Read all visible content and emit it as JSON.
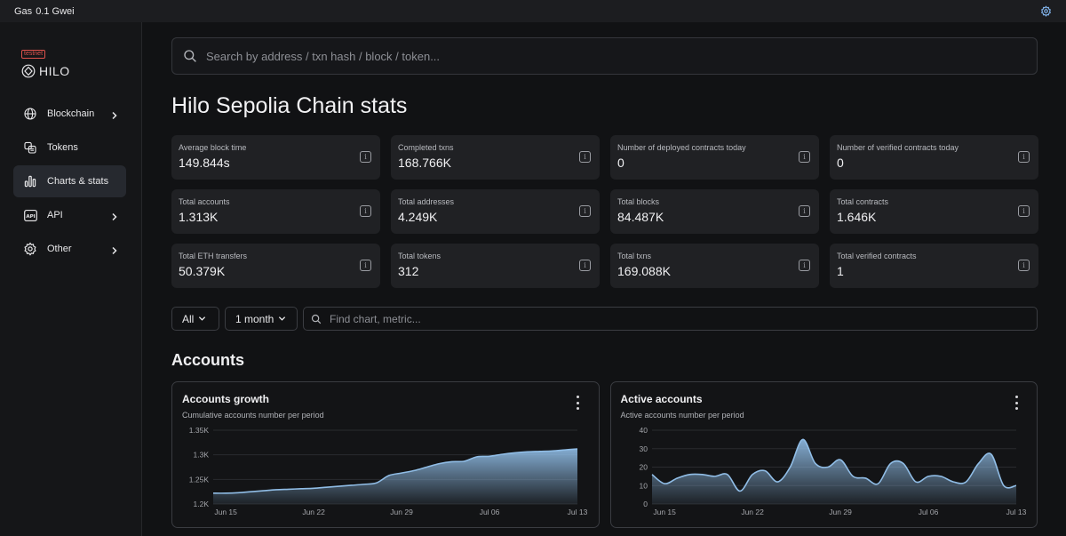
{
  "topbar": {
    "gas_label": "Gas",
    "gas_value": "0.1 Gwei",
    "settings_icon": "gear-icon"
  },
  "brand": {
    "badge": "testnet",
    "name": "HILO"
  },
  "sidebar": {
    "items": [
      {
        "label": "Blockchain",
        "icon": "globe-icon",
        "chevron": true,
        "active": false
      },
      {
        "label": "Tokens",
        "icon": "coins-icon",
        "chevron": false,
        "active": false
      },
      {
        "label": "Charts & stats",
        "icon": "bar-chart-icon",
        "chevron": false,
        "active": true
      },
      {
        "label": "API",
        "icon": "api-icon",
        "chevron": true,
        "active": false
      },
      {
        "label": "Other",
        "icon": "gear-icon",
        "chevron": true,
        "active": false
      }
    ]
  },
  "search": {
    "placeholder": "Search by address / txn hash / block / token..."
  },
  "page": {
    "title": "Hilo Sepolia Chain stats"
  },
  "stats": [
    {
      "label": "Average block time",
      "value": "149.844s"
    },
    {
      "label": "Completed txns",
      "value": "168.766K"
    },
    {
      "label": "Number of deployed contracts today",
      "value": "0"
    },
    {
      "label": "Number of verified contracts today",
      "value": "0"
    },
    {
      "label": "Total accounts",
      "value": "1.313K"
    },
    {
      "label": "Total addresses",
      "value": "4.249K"
    },
    {
      "label": "Total blocks",
      "value": "84.487K"
    },
    {
      "label": "Total contracts",
      "value": "1.646K"
    },
    {
      "label": "Total ETH transfers",
      "value": "50.379K"
    },
    {
      "label": "Total tokens",
      "value": "312"
    },
    {
      "label": "Total txns",
      "value": "169.088K"
    },
    {
      "label": "Total verified contracts",
      "value": "1"
    }
  ],
  "filters": {
    "section": "All",
    "interval": "1 month",
    "chart_search_placeholder": "Find chart, metric..."
  },
  "section": {
    "title": "Accounts"
  },
  "colors": {
    "accent": "#90bde6",
    "card_border": "#3a3c41"
  },
  "chart_data": [
    {
      "type": "area",
      "title": "Accounts growth",
      "subtitle": "Cumulative accounts number per period",
      "x_ticks": [
        "Jun 15",
        "Jun 22",
        "Jun 29",
        "Jul 06",
        "Jul 13"
      ],
      "y_ticks": [
        "1.2K",
        "1.25K",
        "1.3K",
        "1.35K"
      ],
      "ylim": [
        1200,
        1350
      ],
      "x_range": [
        "2024-06-14",
        "2024-07-13"
      ],
      "x": [
        "2024-06-14",
        "2024-06-15",
        "2024-06-16",
        "2024-06-17",
        "2024-06-18",
        "2024-06-19",
        "2024-06-20",
        "2024-06-21",
        "2024-06-22",
        "2024-06-23",
        "2024-06-24",
        "2024-06-25",
        "2024-06-26",
        "2024-06-27",
        "2024-06-28",
        "2024-06-29",
        "2024-06-30",
        "2024-07-01",
        "2024-07-02",
        "2024-07-03",
        "2024-07-04",
        "2024-07-05",
        "2024-07-06",
        "2024-07-07",
        "2024-07-08",
        "2024-07-09",
        "2024-07-10",
        "2024-07-11",
        "2024-07-12",
        "2024-07-13"
      ],
      "values": [
        1222,
        1222,
        1223,
        1225,
        1227,
        1229,
        1230,
        1231,
        1232,
        1234,
        1236,
        1238,
        1240,
        1243,
        1258,
        1263,
        1268,
        1275,
        1282,
        1286,
        1287,
        1296,
        1297,
        1301,
        1304,
        1306,
        1307,
        1308,
        1310,
        1312
      ]
    },
    {
      "type": "area",
      "title": "Active accounts",
      "subtitle": "Active accounts number per period",
      "x_ticks": [
        "Jun 15",
        "Jun 22",
        "Jun 29",
        "Jul 06",
        "Jul 13"
      ],
      "y_ticks": [
        "0",
        "10",
        "20",
        "30",
        "40"
      ],
      "ylim": [
        0,
        40
      ],
      "x_range": [
        "2024-06-14",
        "2024-07-13"
      ],
      "x": [
        "2024-06-14",
        "2024-06-15",
        "2024-06-16",
        "2024-06-17",
        "2024-06-18",
        "2024-06-19",
        "2024-06-20",
        "2024-06-21",
        "2024-06-22",
        "2024-06-23",
        "2024-06-24",
        "2024-06-25",
        "2024-06-26",
        "2024-06-27",
        "2024-06-28",
        "2024-06-29",
        "2024-06-30",
        "2024-07-01",
        "2024-07-02",
        "2024-07-03",
        "2024-07-04",
        "2024-07-05",
        "2024-07-06",
        "2024-07-07",
        "2024-07-08",
        "2024-07-09",
        "2024-07-10",
        "2024-07-11",
        "2024-07-12",
        "2024-07-13"
      ],
      "values": [
        16,
        11,
        14,
        16,
        16,
        15,
        16,
        7,
        16,
        18,
        12,
        20,
        35,
        22,
        20,
        24,
        15,
        14,
        11,
        22,
        22,
        12,
        15,
        15,
        12,
        12,
        22,
        27,
        10,
        10
      ]
    }
  ]
}
